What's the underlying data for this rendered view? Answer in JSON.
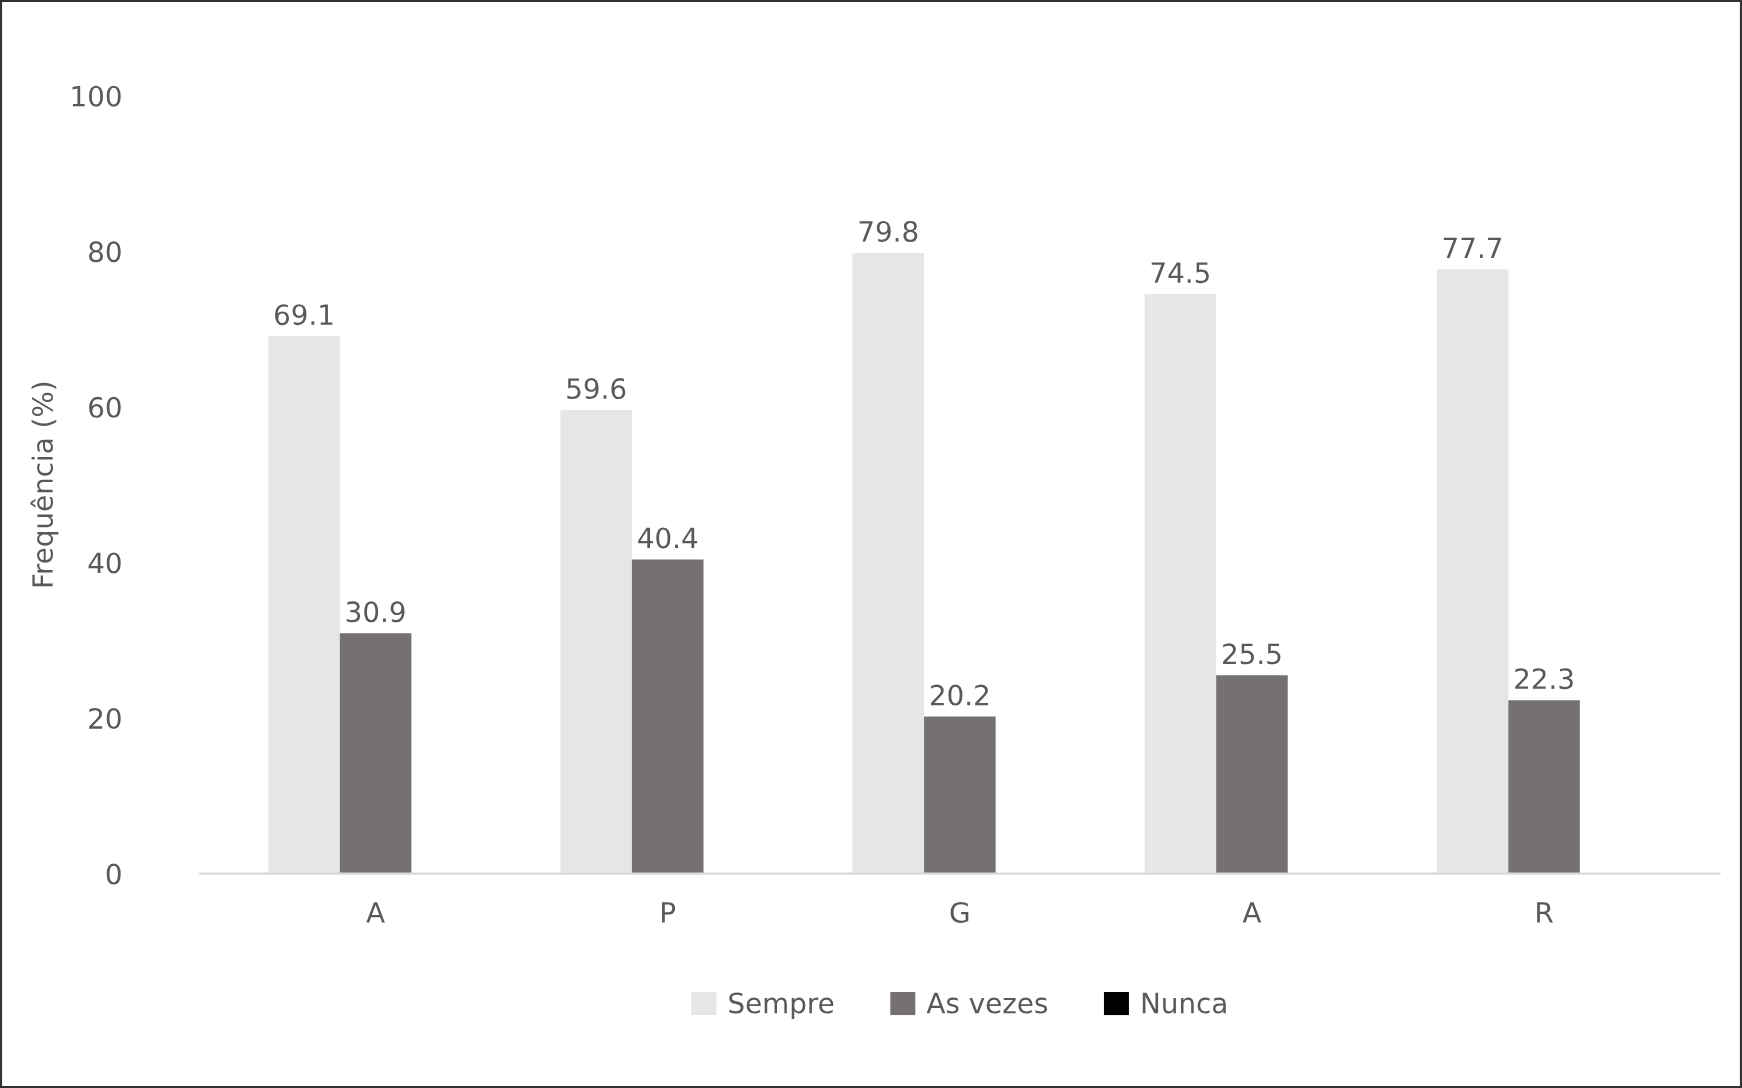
{
  "chart_data": {
    "type": "bar",
    "ylabel": "Frequência (%)",
    "categories": [
      "A",
      "P",
      "G",
      "A",
      "R"
    ],
    "series": [
      {
        "name": "Sempre",
        "color": "#e7e6e6",
        "values": [
          69.1,
          59.6,
          79.8,
          74.5,
          77.7
        ],
        "value_labels": [
          "69.1",
          "59.6",
          "79.8",
          "74.5",
          "77.7"
        ]
      },
      {
        "name": "As vezes",
        "color": "#767171",
        "values": [
          30.9,
          40.4,
          20.2,
          25.5,
          22.3
        ],
        "value_labels": [
          "30.9",
          "40.4",
          "20.2",
          "25.5",
          "22.3"
        ]
      },
      {
        "name": "Nunca",
        "color": "#000000",
        "values": [
          0,
          0,
          0,
          0,
          0
        ],
        "value_labels": [
          null,
          null,
          null,
          null,
          null
        ]
      }
    ],
    "ylim": [
      0,
      100
    ],
    "yticks": [
      0,
      20,
      40,
      60,
      80,
      100
    ],
    "grid": false,
    "legend": "bottom"
  }
}
